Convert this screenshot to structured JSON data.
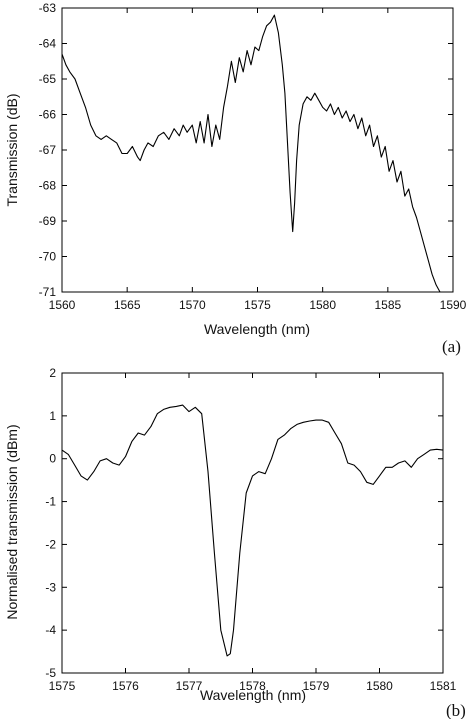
{
  "chart_data": [
    {
      "type": "line",
      "xlabel": "Wavelength (nm)",
      "ylabel": "Transmission (dB)",
      "panel_label": "(a)",
      "xlim": [
        1560,
        1590
      ],
      "ylim": [
        -71,
        -63
      ],
      "xticks": [
        1560,
        1565,
        1570,
        1575,
        1580,
        1585,
        1590
      ],
      "yticks": [
        -71,
        -70,
        -69,
        -68,
        -67,
        -66,
        -65,
        -64,
        -63
      ],
      "grid": false,
      "series": [
        {
          "x": [
            1560,
            1560.3,
            1560.6,
            1561,
            1561.4,
            1561.8,
            1562.2,
            1562.6,
            1563,
            1563.4,
            1563.8,
            1564.2,
            1564.6,
            1565,
            1565.4,
            1565.8,
            1566,
            1566.3,
            1566.6,
            1567,
            1567.4,
            1567.8,
            1568.2,
            1568.6,
            1569,
            1569.3,
            1569.6,
            1570,
            1570.3,
            1570.6,
            1570.9,
            1571.2,
            1571.5,
            1571.8,
            1572.1,
            1572.4,
            1572.7,
            1573,
            1573.3,
            1573.6,
            1573.9,
            1574.2,
            1574.5,
            1574.8,
            1575.1,
            1575.4,
            1575.7,
            1576,
            1576.3,
            1576.6,
            1576.9,
            1577.1,
            1577.3,
            1577.5,
            1577.7,
            1577.85,
            1578,
            1578.2,
            1578.5,
            1578.8,
            1579.1,
            1579.4,
            1579.7,
            1580,
            1580.3,
            1580.6,
            1580.9,
            1581.2,
            1581.5,
            1581.8,
            1582.1,
            1582.4,
            1582.7,
            1583,
            1583.3,
            1583.6,
            1583.9,
            1584.2,
            1584.5,
            1584.8,
            1585.1,
            1585.4,
            1585.7,
            1586,
            1586.3,
            1586.6,
            1586.9,
            1587.2,
            1587.5,
            1587.8,
            1588.1,
            1588.4,
            1588.7,
            1589
          ],
          "y": [
            -64.3,
            -64.6,
            -64.8,
            -65.0,
            -65.4,
            -65.8,
            -66.3,
            -66.6,
            -66.7,
            -66.6,
            -66.7,
            -66.8,
            -67.1,
            -67.1,
            -66.9,
            -67.2,
            -67.3,
            -67.0,
            -66.8,
            -66.9,
            -66.6,
            -66.5,
            -66.7,
            -66.4,
            -66.6,
            -66.3,
            -66.5,
            -66.3,
            -66.8,
            -66.2,
            -66.8,
            -66.0,
            -66.9,
            -66.3,
            -66.7,
            -65.8,
            -65.2,
            -64.5,
            -65.1,
            -64.4,
            -64.8,
            -64.2,
            -64.6,
            -64.1,
            -64.2,
            -63.8,
            -63.5,
            -63.4,
            -63.2,
            -63.7,
            -64.6,
            -65.4,
            -66.8,
            -68.2,
            -69.3,
            -68.5,
            -67.3,
            -66.3,
            -65.7,
            -65.5,
            -65.6,
            -65.4,
            -65.6,
            -65.8,
            -65.9,
            -65.7,
            -66.0,
            -65.8,
            -66.1,
            -65.9,
            -66.2,
            -66.0,
            -66.4,
            -66.1,
            -66.6,
            -66.3,
            -66.9,
            -66.6,
            -67.2,
            -66.9,
            -67.6,
            -67.3,
            -67.9,
            -67.6,
            -68.3,
            -68.1,
            -68.6,
            -68.9,
            -69.3,
            -69.7,
            -70.1,
            -70.5,
            -70.8,
            -71.0
          ]
        }
      ]
    },
    {
      "type": "line",
      "xlabel": "Wavelength (nm)",
      "ylabel": "Normalised transmission (dBm)",
      "panel_label": "(b)",
      "xlim": [
        1575,
        1581
      ],
      "ylim": [
        -5,
        2
      ],
      "xticks": [
        1575,
        1576,
        1577,
        1578,
        1579,
        1580,
        1581
      ],
      "yticks": [
        -5,
        -4,
        -3,
        -2,
        -1,
        0,
        1,
        2
      ],
      "grid": false,
      "series": [
        {
          "x": [
            1575,
            1575.1,
            1575.2,
            1575.3,
            1575.4,
            1575.5,
            1575.6,
            1575.7,
            1575.8,
            1575.9,
            1576,
            1576.1,
            1576.2,
            1576.3,
            1576.4,
            1576.5,
            1576.6,
            1576.7,
            1576.8,
            1576.9,
            1577,
            1577.1,
            1577.2,
            1577.3,
            1577.4,
            1577.5,
            1577.6,
            1577.65,
            1577.7,
            1577.8,
            1577.9,
            1578,
            1578.1,
            1578.2,
            1578.3,
            1578.4,
            1578.5,
            1578.6,
            1578.7,
            1578.8,
            1578.9,
            1579,
            1579.1,
            1579.2,
            1579.3,
            1579.4,
            1579.5,
            1579.6,
            1579.7,
            1579.8,
            1579.9,
            1580,
            1580.1,
            1580.2,
            1580.3,
            1580.4,
            1580.5,
            1580.6,
            1580.7,
            1580.8,
            1580.9,
            1581
          ],
          "y": [
            0.2,
            0.1,
            -0.15,
            -0.4,
            -0.5,
            -0.3,
            -0.05,
            0.0,
            -0.1,
            -0.15,
            0.05,
            0.4,
            0.6,
            0.55,
            0.75,
            1.05,
            1.15,
            1.2,
            1.22,
            1.25,
            1.1,
            1.2,
            1.05,
            -0.3,
            -2.2,
            -4.0,
            -4.6,
            -4.55,
            -4.0,
            -2.2,
            -0.8,
            -0.4,
            -0.3,
            -0.35,
            0.0,
            0.45,
            0.55,
            0.7,
            0.8,
            0.85,
            0.88,
            0.9,
            0.9,
            0.85,
            0.6,
            0.35,
            -0.1,
            -0.15,
            -0.3,
            -0.55,
            -0.6,
            -0.4,
            -0.2,
            -0.2,
            -0.1,
            -0.05,
            -0.2,
            0.0,
            0.1,
            0.2,
            0.22,
            0.2
          ]
        }
      ]
    }
  ]
}
